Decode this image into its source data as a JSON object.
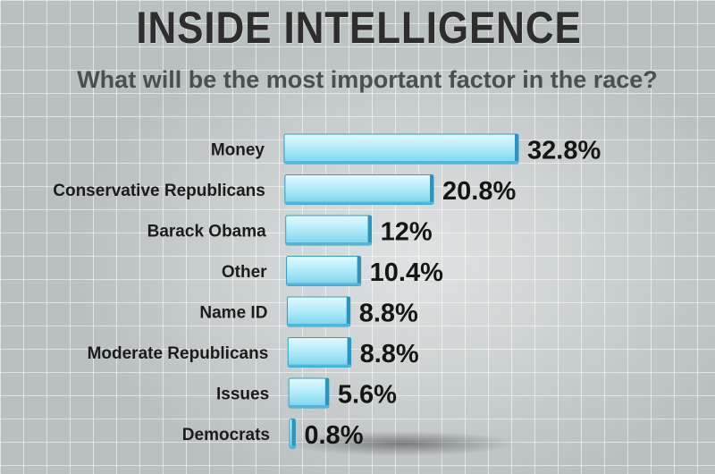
{
  "header": {
    "title": "INSIDE INTELLIGENCE",
    "subtitle": "What will be the most important factor in the race?"
  },
  "chart_data": {
    "type": "bar",
    "orientation": "horizontal",
    "categories": [
      "Money",
      "Conservative Republicans",
      "Barack Obama",
      "Other",
      "Name ID",
      "Moderate Republicans",
      "Issues",
      "Democrats"
    ],
    "values": [
      32.8,
      20.8,
      12,
      10.4,
      8.8,
      8.8,
      5.6,
      0.8
    ],
    "value_labels": [
      "32.8%",
      "20.8%",
      "12%",
      "10.4%",
      "8.8%",
      "8.8%",
      "5.6%",
      "0.8%"
    ],
    "title": "INSIDE INTELLIGENCE",
    "subtitle": "What will be the most important factor in the race?",
    "xlabel": "",
    "ylabel": "",
    "grid": false,
    "legend": "none",
    "colors": {
      "bar_fill_top": "#d9f6fd",
      "bar_fill_bottom": "#8fdcf2",
      "bar_edge": "#2e9fc4",
      "text": "#151515"
    }
  }
}
